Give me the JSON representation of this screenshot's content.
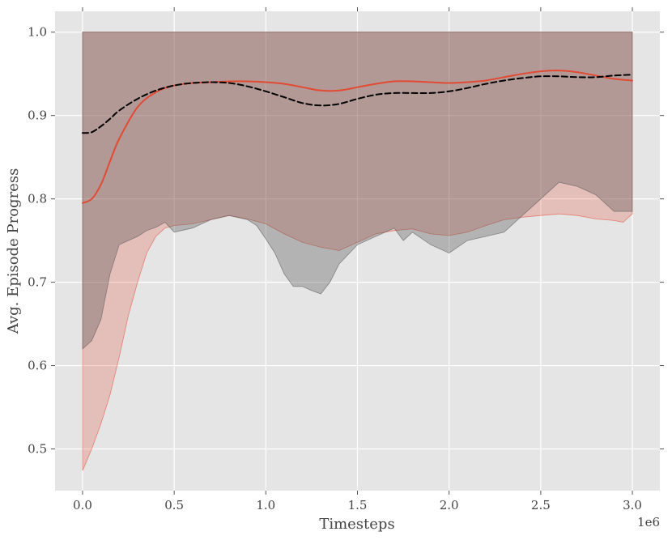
{
  "chart_data": {
    "type": "line",
    "xlabel": "Timesteps",
    "ylabel": "Avg. Episode Progress",
    "x_offset_label": "1e6",
    "xlim": [
      -0.15,
      3.15
    ],
    "ylim": [
      0.45,
      1.025
    ],
    "x_ticks": [
      0.0,
      0.5,
      1.0,
      1.5,
      2.0,
      2.5,
      3.0
    ],
    "x_tick_labels": [
      "0.0",
      "0.5",
      "1.0",
      "1.5",
      "2.0",
      "2.5",
      "3.0"
    ],
    "y_ticks": [
      0.5,
      0.6,
      0.7,
      0.8,
      0.9,
      1.0
    ],
    "y_tick_labels": [
      "0.5",
      "0.6",
      "0.7",
      "0.8",
      "0.9",
      "1.0"
    ],
    "grid": true,
    "colors": {
      "background": "#e5e5e5",
      "grid": "#ffffff",
      "red": "#e24a33",
      "red_band": "#e24a33",
      "dark_band": "#555555",
      "black": "#000000"
    },
    "series": [
      {
        "style": "solid",
        "color": "#e24a33",
        "x": [
          0.0,
          0.05,
          0.1,
          0.15,
          0.2,
          0.3,
          0.4,
          0.5,
          0.6,
          0.7,
          0.8,
          0.9,
          1.0,
          1.1,
          1.2,
          1.3,
          1.4,
          1.5,
          1.6,
          1.7,
          1.8,
          1.9,
          2.0,
          2.1,
          2.2,
          2.3,
          2.4,
          2.5,
          2.6,
          2.7,
          2.8,
          2.9,
          3.0
        ],
        "y": [
          0.795,
          0.8,
          0.817,
          0.845,
          0.872,
          0.91,
          0.928,
          0.936,
          0.939,
          0.94,
          0.941,
          0.941,
          0.94,
          0.938,
          0.934,
          0.93,
          0.93,
          0.934,
          0.938,
          0.941,
          0.941,
          0.94,
          0.939,
          0.94,
          0.942,
          0.946,
          0.95,
          0.953,
          0.954,
          0.952,
          0.948,
          0.944,
          0.942
        ]
      },
      {
        "style": "dashed",
        "color": "#000000",
        "x": [
          0.0,
          0.05,
          0.1,
          0.15,
          0.2,
          0.3,
          0.4,
          0.5,
          0.6,
          0.7,
          0.8,
          0.9,
          1.0,
          1.1,
          1.2,
          1.3,
          1.4,
          1.5,
          1.6,
          1.7,
          1.8,
          1.9,
          2.0,
          2.1,
          2.2,
          2.3,
          2.4,
          2.5,
          2.6,
          2.7,
          2.8,
          2.9,
          3.0
        ],
        "y": [
          0.879,
          0.88,
          0.887,
          0.896,
          0.906,
          0.92,
          0.93,
          0.936,
          0.939,
          0.94,
          0.939,
          0.935,
          0.929,
          0.922,
          0.915,
          0.912,
          0.914,
          0.92,
          0.925,
          0.927,
          0.927,
          0.927,
          0.929,
          0.933,
          0.938,
          0.942,
          0.945,
          0.947,
          0.947,
          0.946,
          0.946,
          0.948,
          0.949
        ]
      }
    ],
    "bands": [
      {
        "color": "#e24a33",
        "opacity": 0.25,
        "x": [
          0.0,
          0.05,
          0.1,
          0.15,
          0.2,
          0.25,
          0.3,
          0.35,
          0.4,
          0.45,
          0.5,
          0.6,
          0.7,
          0.8,
          0.9,
          1.0,
          1.1,
          1.2,
          1.3,
          1.4,
          1.5,
          1.6,
          1.7,
          1.8,
          1.9,
          2.0,
          2.1,
          2.2,
          2.3,
          2.4,
          2.5,
          2.6,
          2.7,
          2.8,
          2.9,
          2.95,
          3.0
        ],
        "lower": [
          0.474,
          0.5,
          0.53,
          0.565,
          0.61,
          0.66,
          0.7,
          0.735,
          0.755,
          0.765,
          0.768,
          0.77,
          0.775,
          0.78,
          0.776,
          0.77,
          0.758,
          0.748,
          0.742,
          0.738,
          0.748,
          0.758,
          0.762,
          0.764,
          0.758,
          0.756,
          0.76,
          0.768,
          0.775,
          0.778,
          0.78,
          0.782,
          0.78,
          0.776,
          0.774,
          0.772,
          0.782
        ],
        "upper": [
          1.0,
          1.0,
          1.0,
          1.0,
          1.0,
          1.0,
          1.0,
          1.0,
          1.0,
          1.0,
          1.0,
          1.0,
          1.0,
          1.0,
          1.0,
          1.0,
          1.0,
          1.0,
          1.0,
          1.0,
          1.0,
          1.0,
          1.0,
          1.0,
          1.0,
          1.0,
          1.0,
          1.0,
          1.0,
          1.0,
          1.0,
          1.0,
          1.0,
          1.0,
          1.0,
          1.0,
          1.0
        ]
      },
      {
        "color": "#555555",
        "opacity": 0.35,
        "x": [
          0.0,
          0.05,
          0.1,
          0.15,
          0.2,
          0.25,
          0.3,
          0.35,
          0.4,
          0.45,
          0.5,
          0.6,
          0.7,
          0.8,
          0.9,
          0.95,
          1.0,
          1.05,
          1.1,
          1.15,
          1.2,
          1.25,
          1.3,
          1.35,
          1.4,
          1.5,
          1.6,
          1.7,
          1.75,
          1.8,
          1.9,
          2.0,
          2.1,
          2.2,
          2.3,
          2.4,
          2.5,
          2.6,
          2.7,
          2.8,
          2.9,
          3.0
        ],
        "lower": [
          0.62,
          0.63,
          0.655,
          0.71,
          0.745,
          0.75,
          0.755,
          0.762,
          0.766,
          0.772,
          0.76,
          0.765,
          0.775,
          0.78,
          0.775,
          0.768,
          0.752,
          0.735,
          0.71,
          0.695,
          0.695,
          0.69,
          0.686,
          0.7,
          0.722,
          0.745,
          0.755,
          0.765,
          0.75,
          0.76,
          0.745,
          0.735,
          0.75,
          0.755,
          0.76,
          0.78,
          0.8,
          0.82,
          0.815,
          0.805,
          0.785,
          0.785
        ],
        "upper": [
          1.0,
          1.0,
          1.0,
          1.0,
          1.0,
          1.0,
          1.0,
          1.0,
          1.0,
          1.0,
          1.0,
          1.0,
          1.0,
          1.0,
          1.0,
          1.0,
          1.0,
          1.0,
          1.0,
          1.0,
          1.0,
          1.0,
          1.0,
          1.0,
          1.0,
          1.0,
          1.0,
          1.0,
          1.0,
          1.0,
          1.0,
          1.0,
          1.0,
          1.0,
          1.0,
          1.0,
          1.0,
          1.0,
          1.0,
          1.0,
          1.0,
          1.0
        ]
      }
    ]
  }
}
